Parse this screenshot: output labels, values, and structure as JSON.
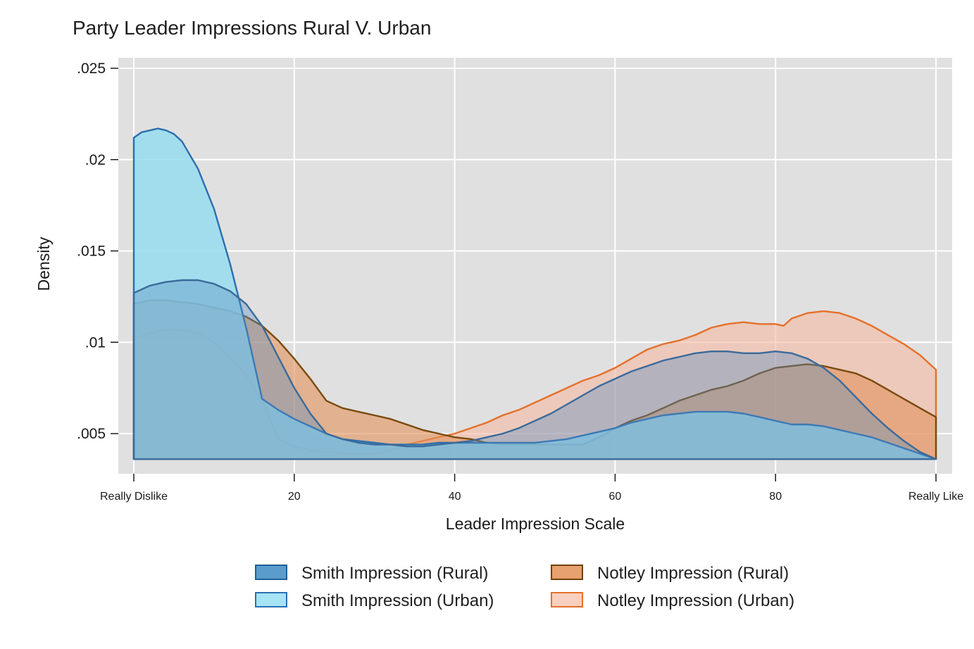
{
  "chart_data": {
    "type": "area",
    "title": "Party Leader Impressions Rural V. Urban",
    "xlabel": "Leader Impression Scale",
    "ylabel": "Density",
    "xlim": [
      0,
      100
    ],
    "ylim": [
      0.0029,
      0.026
    ],
    "baseline": 0.0036,
    "grid": true,
    "legend_position": "bottom",
    "x_ticks": [
      {
        "value": 0,
        "label": "Really Dislike"
      },
      {
        "value": 20,
        "label": "20"
      },
      {
        "value": 40,
        "label": "40"
      },
      {
        "value": 60,
        "label": "60"
      },
      {
        "value": 80,
        "label": "80"
      },
      {
        "value": 100,
        "label": "Really Like"
      }
    ],
    "y_ticks": [
      {
        "value": 0.005,
        "label": ".005"
      },
      {
        "value": 0.01,
        "label": ".01"
      },
      {
        "value": 0.015,
        "label": ".015"
      },
      {
        "value": 0.02,
        "label": ".02"
      },
      {
        "value": 0.025,
        "label": ".025"
      }
    ],
    "series": [
      {
        "name": "Notley Impression (Urban)",
        "fill": "#f4bba5",
        "stroke": "#e5702a",
        "fill_opacity": 0.62,
        "x": [
          0,
          2,
          4,
          6,
          8,
          10,
          12,
          14,
          16,
          18,
          20,
          22,
          24,
          27,
          30,
          32,
          34,
          36,
          38,
          40,
          42,
          44,
          46,
          48,
          50,
          52,
          54,
          56,
          58,
          60,
          62,
          64,
          66,
          68,
          70,
          72,
          74,
          76,
          78,
          80,
          81,
          82,
          84,
          86,
          88,
          90,
          92,
          94,
          96,
          98,
          100
        ],
        "y": [
          0.0102,
          0.0105,
          0.0107,
          0.0107,
          0.0105,
          0.01,
          0.0092,
          0.0082,
          0.0069,
          0.0047,
          0.0043,
          0.0041,
          0.004,
          0.0039,
          0.0039,
          0.0041,
          0.0044,
          0.0046,
          0.0048,
          0.005,
          0.0053,
          0.0056,
          0.006,
          0.0063,
          0.0067,
          0.0071,
          0.0075,
          0.0079,
          0.0082,
          0.0086,
          0.0091,
          0.0096,
          0.0099,
          0.0101,
          0.0104,
          0.0108,
          0.011,
          0.0111,
          0.011,
          0.011,
          0.0109,
          0.0113,
          0.0116,
          0.0117,
          0.0116,
          0.0113,
          0.0109,
          0.0104,
          0.0099,
          0.0093,
          0.0085
        ]
      },
      {
        "name": "Notley Impression (Rural)",
        "fill": "#e2955f",
        "stroke": "#7a4a0c",
        "fill_opacity": 0.62,
        "x": [
          0,
          2,
          4,
          6,
          8,
          10,
          12,
          14,
          16,
          18,
          20,
          22,
          24,
          26,
          28,
          30,
          32,
          34,
          36,
          38,
          40,
          42,
          44,
          46,
          48,
          50,
          52,
          54,
          56,
          58,
          60,
          62,
          64,
          66,
          68,
          70,
          72,
          74,
          76,
          78,
          80,
          82,
          84,
          86,
          88,
          90,
          92,
          94,
          96,
          98,
          100
        ],
        "y": [
          0.0121,
          0.0123,
          0.0123,
          0.0122,
          0.0121,
          0.0119,
          0.0117,
          0.0114,
          0.0109,
          0.0101,
          0.0091,
          0.008,
          0.0068,
          0.0064,
          0.0062,
          0.006,
          0.0058,
          0.0055,
          0.0052,
          0.005,
          0.0048,
          0.0047,
          0.0045,
          0.0044,
          0.0044,
          0.0044,
          0.0044,
          0.0044,
          0.0044,
          0.0048,
          0.0053,
          0.0057,
          0.006,
          0.0064,
          0.0068,
          0.0071,
          0.0074,
          0.0076,
          0.0079,
          0.0083,
          0.0086,
          0.0087,
          0.0088,
          0.0087,
          0.0085,
          0.0083,
          0.0079,
          0.0074,
          0.0069,
          0.0064,
          0.0059
        ]
      },
      {
        "name": "Smith Impression (Urban)",
        "fill": "#96dcf0",
        "stroke": "#2a6fad",
        "fill_opacity": 0.85,
        "x": [
          0,
          1,
          2,
          3,
          4,
          5,
          6,
          8,
          10,
          12,
          14,
          16,
          18,
          20,
          22,
          24,
          26,
          28,
          30,
          32,
          34,
          36,
          38,
          40,
          42,
          44,
          46,
          48,
          50,
          52,
          54,
          56,
          58,
          60,
          62,
          64,
          66,
          68,
          70,
          72,
          74,
          76,
          78,
          80,
          82,
          84,
          86,
          88,
          90,
          92,
          94,
          96,
          98,
          100
        ],
        "y": [
          0.0212,
          0.0215,
          0.0216,
          0.0217,
          0.0216,
          0.0214,
          0.021,
          0.0195,
          0.0173,
          0.0143,
          0.0108,
          0.0069,
          0.0063,
          0.0058,
          0.0054,
          0.005,
          0.0047,
          0.0046,
          0.0045,
          0.0044,
          0.0044,
          0.0044,
          0.0045,
          0.0045,
          0.0045,
          0.0045,
          0.0045,
          0.0045,
          0.0045,
          0.0046,
          0.0047,
          0.0049,
          0.0051,
          0.0053,
          0.0056,
          0.0058,
          0.006,
          0.0061,
          0.0062,
          0.0062,
          0.0062,
          0.0061,
          0.0059,
          0.0057,
          0.0055,
          0.0055,
          0.0054,
          0.0052,
          0.005,
          0.0048,
          0.0045,
          0.0042,
          0.0039,
          0.0036
        ]
      },
      {
        "name": "Smith Impression (Rural)",
        "fill": "#5a8fbf",
        "stroke": "#3a6a9a",
        "fill_opacity": 0.38,
        "x": [
          0,
          2,
          4,
          6,
          8,
          10,
          12,
          14,
          16,
          18,
          20,
          22,
          24,
          26,
          28,
          30,
          32,
          34,
          36,
          38,
          40,
          42,
          44,
          46,
          48,
          50,
          52,
          54,
          56,
          58,
          60,
          62,
          64,
          66,
          68,
          70,
          72,
          74,
          76,
          78,
          80,
          82,
          84,
          86,
          88,
          90,
          92,
          94,
          96,
          98,
          100
        ],
        "y": [
          0.0127,
          0.0131,
          0.0133,
          0.0134,
          0.0134,
          0.0132,
          0.0128,
          0.0121,
          0.0109,
          0.0092,
          0.0075,
          0.0061,
          0.005,
          0.0047,
          0.0045,
          0.0044,
          0.0044,
          0.0043,
          0.0043,
          0.0044,
          0.0045,
          0.0046,
          0.0048,
          0.005,
          0.0053,
          0.0057,
          0.0061,
          0.0066,
          0.0071,
          0.0076,
          0.008,
          0.0084,
          0.0087,
          0.009,
          0.0092,
          0.0094,
          0.0095,
          0.0095,
          0.0094,
          0.0094,
          0.0095,
          0.0094,
          0.0091,
          0.0086,
          0.0079,
          0.007,
          0.0061,
          0.0053,
          0.0046,
          0.004,
          0.0036
        ]
      }
    ],
    "legend": [
      {
        "label": "Smith Impression (Rural)",
        "fill": "#5a9dcc",
        "stroke": "#1f5f9a"
      },
      {
        "label": "Notley Impression (Rural)",
        "fill": "#e7a070",
        "stroke": "#6e4200"
      },
      {
        "label": "Smith Impression (Urban)",
        "fill": "#a6e3f4",
        "stroke": "#2a70b0"
      },
      {
        "label": "Notley Impression (Urban)",
        "fill": "#f8d0bf",
        "stroke": "#e5702a"
      }
    ]
  }
}
